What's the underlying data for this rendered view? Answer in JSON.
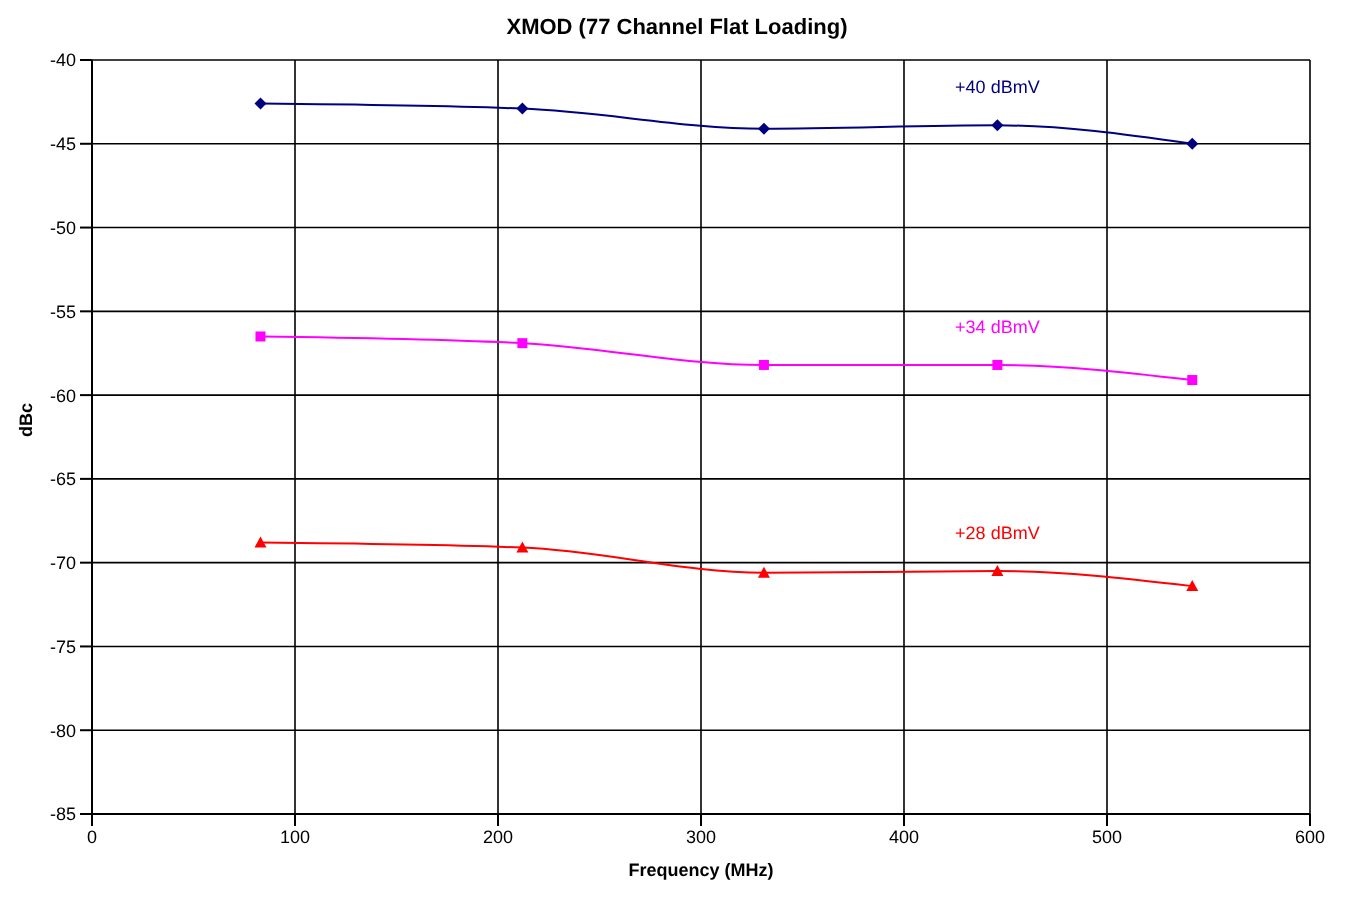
{
  "chart_data": {
    "type": "line",
    "title": "XMOD (77 Channel Flat Loading)",
    "xlabel": "Frequency (MHz)",
    "ylabel": "dBc",
    "x": [
      83,
      212,
      331,
      446,
      542
    ],
    "series": [
      {
        "name": "+40 dBmV",
        "color": "#000080",
        "marker": "diamond",
        "values": [
          -42.6,
          -42.9,
          -44.1,
          -43.9,
          -45.0
        ]
      },
      {
        "name": "+34 dBmV",
        "color": "#ff00ff",
        "marker": "square",
        "values": [
          -56.5,
          -56.9,
          -58.2,
          -58.2,
          -59.1
        ]
      },
      {
        "name": "+28 dBmV",
        "color": "#ff0000",
        "marker": "triangle",
        "values": [
          -68.8,
          -69.1,
          -70.6,
          -70.5,
          -71.4
        ]
      }
    ],
    "xlim": [
      0,
      600
    ],
    "xticks": [
      0,
      100,
      200,
      300,
      400,
      500,
      600
    ],
    "ylim": [
      -85,
      -40
    ],
    "yticks": [
      -85,
      -80,
      -75,
      -70,
      -65,
      -60,
      -55,
      -50,
      -45,
      -40
    ],
    "grid": true,
    "legend": false
  }
}
